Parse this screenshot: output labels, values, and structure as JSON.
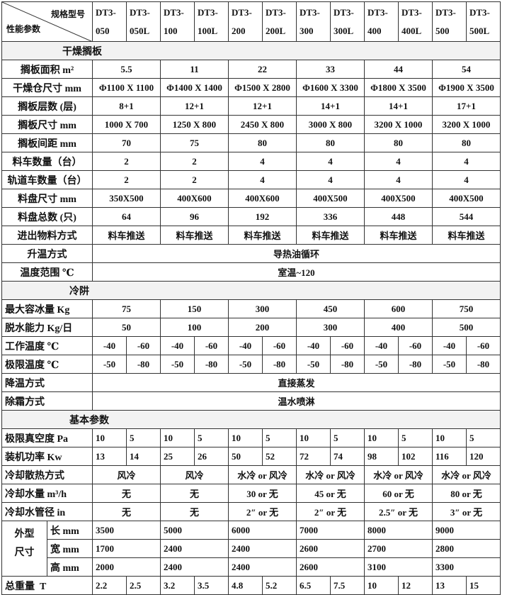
{
  "header": {
    "corner_top": "规格型号",
    "corner_bottom": "性能参数",
    "models": [
      [
        "DT3-",
        "050"
      ],
      [
        "DT3-",
        "050L"
      ],
      [
        "DT3-",
        "100"
      ],
      [
        "DT3-",
        "100L"
      ],
      [
        "DT3-",
        "200"
      ],
      [
        "DT3-",
        "200L"
      ],
      [
        "DT3-",
        "300"
      ],
      [
        "DT3-",
        "300L"
      ],
      [
        "DT3-",
        "400"
      ],
      [
        "DT3-",
        "400L"
      ],
      [
        "DT3-",
        "500"
      ],
      [
        "DT3-",
        "500L"
      ]
    ]
  },
  "sections": [
    {
      "title": "干燥搁板",
      "rows": [
        {
          "label": "搁板面积 m²",
          "cells": [
            [
              "5.5",
              2
            ],
            [
              "11",
              2
            ],
            [
              "22",
              2
            ],
            [
              "33",
              2
            ],
            [
              "44",
              2
            ],
            [
              "54",
              2
            ]
          ]
        },
        {
          "label": "干燥仓尺寸 mm",
          "cells": [
            [
              "Φ1100 X 1100",
              2
            ],
            [
              "Φ1400 X 1400",
              2
            ],
            [
              "Φ1500 X 2800",
              2
            ],
            [
              "Φ1600 X 3300",
              2
            ],
            [
              "Φ1800 X 3500",
              2
            ],
            [
              "Φ1900 X 3500",
              2
            ]
          ]
        },
        {
          "label": "搁板层数 (层)",
          "cells": [
            [
              "8+1",
              2
            ],
            [
              "12+1",
              2
            ],
            [
              "12+1",
              2
            ],
            [
              "14+1",
              2
            ],
            [
              "14+1",
              2
            ],
            [
              "17+1",
              2
            ]
          ]
        },
        {
          "label": "搁板尺寸 mm",
          "cells": [
            [
              "1000 X 700",
              2
            ],
            [
              "1250 X 800",
              2
            ],
            [
              "2450 X 800",
              2
            ],
            [
              "3000 X 800",
              2
            ],
            [
              "3200 X 1000",
              2
            ],
            [
              "3200 X 1000",
              2
            ]
          ]
        },
        {
          "label": "搁板间距 mm",
          "cells": [
            [
              "70",
              2
            ],
            [
              "75",
              2
            ],
            [
              "80",
              2
            ],
            [
              "80",
              2
            ],
            [
              "80",
              2
            ],
            [
              "80",
              2
            ]
          ]
        },
        {
          "label": "料车数量（台）",
          "cells": [
            [
              "2",
              2
            ],
            [
              "2",
              2
            ],
            [
              "4",
              2
            ],
            [
              "4",
              2
            ],
            [
              "4",
              2
            ],
            [
              "4",
              2
            ]
          ]
        },
        {
          "label": "轨道车数量（台）",
          "cells": [
            [
              "2",
              2
            ],
            [
              "2",
              2
            ],
            [
              "4",
              2
            ],
            [
              "4",
              2
            ],
            [
              "4",
              2
            ],
            [
              "4",
              2
            ]
          ]
        },
        {
          "label": "料盘尺寸 mm",
          "cells": [
            [
              "350X500",
              2
            ],
            [
              "400X600",
              2
            ],
            [
              "400X600",
              2
            ],
            [
              "400X500",
              2
            ],
            [
              "400X500",
              2
            ],
            [
              "400X500",
              2
            ]
          ]
        },
        {
          "label": "料盘总数 (只)",
          "cells": [
            [
              "64",
              2
            ],
            [
              "96",
              2
            ],
            [
              "192",
              2
            ],
            [
              "336",
              2
            ],
            [
              "448",
              2
            ],
            [
              "544",
              2
            ]
          ]
        },
        {
          "label": "进出物料方式",
          "cells": [
            [
              "料车推送",
              2
            ],
            [
              "料车推送",
              2
            ],
            [
              "料车推送",
              2
            ],
            [
              "料车推送",
              2
            ],
            [
              "料车推送",
              2
            ],
            [
              "料车推送",
              2
            ]
          ]
        },
        {
          "label": "升温方式",
          "cells": [
            [
              "导热油循环",
              12
            ]
          ]
        },
        {
          "label": "温度范围 ℃",
          "cells": [
            [
              "室温~120",
              12
            ]
          ]
        }
      ]
    },
    {
      "title": "冷阱",
      "rows": [
        {
          "label": "最大容冰量 Kg",
          "cells": [
            [
              "75",
              2
            ],
            [
              "150",
              2
            ],
            [
              "300",
              2
            ],
            [
              "450",
              2
            ],
            [
              "600",
              2
            ],
            [
              "750",
              2
            ]
          ]
        },
        {
          "label": "脱水能力 Kg/日",
          "cells": [
            [
              "50",
              2
            ],
            [
              "100",
              2
            ],
            [
              "200",
              2
            ],
            [
              "300",
              2
            ],
            [
              "400",
              2
            ],
            [
              "500",
              2
            ]
          ]
        },
        {
          "label": "工作温度 ℃",
          "cells": [
            [
              "-40",
              1
            ],
            [
              "-60",
              1
            ],
            [
              "-40",
              1
            ],
            [
              "-60",
              1
            ],
            [
              "-40",
              1
            ],
            [
              "-60",
              1
            ],
            [
              "-40",
              1
            ],
            [
              "-60",
              1
            ],
            [
              "-40",
              1
            ],
            [
              "-60",
              1
            ],
            [
              "-40",
              1
            ],
            [
              "-60",
              1
            ]
          ]
        },
        {
          "label": "极限温度 ℃",
          "cells": [
            [
              "-50",
              1
            ],
            [
              "-80",
              1
            ],
            [
              "-50",
              1
            ],
            [
              "-80",
              1
            ],
            [
              "-50",
              1
            ],
            [
              "-80",
              1
            ],
            [
              "-50",
              1
            ],
            [
              "-80",
              1
            ],
            [
              "-50",
              1
            ],
            [
              "-80",
              1
            ],
            [
              "-50",
              1
            ],
            [
              "-80",
              1
            ]
          ]
        },
        {
          "label": "降温方式",
          "cells": [
            [
              "直接蒸发",
              12
            ]
          ]
        },
        {
          "label": "除霜方式",
          "cells": [
            [
              "温水喷淋",
              12
            ]
          ]
        }
      ]
    },
    {
      "title": "基本参数",
      "rows": [
        {
          "label": "极限真空度 Pa",
          "cells": [
            [
              "10",
              1
            ],
            [
              "5",
              1
            ],
            [
              "10",
              1
            ],
            [
              "5",
              1
            ],
            [
              "10",
              1
            ],
            [
              "5",
              1
            ],
            [
              "10",
              1
            ],
            [
              "5",
              1
            ],
            [
              "10",
              1
            ],
            [
              "5",
              1
            ],
            [
              "10",
              1
            ],
            [
              "5",
              1
            ]
          ]
        },
        {
          "label": "装机功率 Kw",
          "cells": [
            [
              "13",
              1
            ],
            [
              "14",
              1
            ],
            [
              "25",
              1
            ],
            [
              "26",
              1
            ],
            [
              "50",
              1
            ],
            [
              "52",
              1
            ],
            [
              "72",
              1
            ],
            [
              "74",
              1
            ],
            [
              "98",
              1
            ],
            [
              "102",
              1
            ],
            [
              "116",
              1
            ],
            [
              "120",
              1
            ]
          ]
        },
        {
          "label": "冷却散热方式",
          "cells": [
            [
              "风冷",
              2
            ],
            [
              "风冷",
              2
            ],
            [
              "水冷 or 风冷",
              2
            ],
            [
              "水冷 or 风冷",
              2
            ],
            [
              "水冷 or 风冷",
              2
            ],
            [
              "水冷 or 风冷",
              2
            ]
          ]
        },
        {
          "label": "冷却水量 m³/h",
          "cells": [
            [
              "无",
              2
            ],
            [
              "无",
              2
            ],
            [
              "30 or 无",
              2
            ],
            [
              "45 or 无",
              2
            ],
            [
              "60 or 无",
              2
            ],
            [
              "80 or 无",
              2
            ]
          ]
        },
        {
          "label": "冷却水管径 in",
          "cells": [
            [
              "无",
              2
            ],
            [
              "无",
              2
            ],
            [
              "2″ or 无",
              2
            ],
            [
              "2″ or 无",
              2
            ],
            [
              "2.5″ or 无",
              2
            ],
            [
              "3″ or 无",
              2
            ]
          ]
        }
      ]
    }
  ],
  "dimensions": {
    "group_label": [
      "外型",
      "尺寸"
    ],
    "rows": [
      {
        "label": "长 mm",
        "cells": [
          "3500",
          "5000",
          "6000",
          "7000",
          "8000",
          "9000"
        ]
      },
      {
        "label": "宽 mm",
        "cells": [
          "1700",
          "2400",
          "2400",
          "2600",
          "2700",
          "2800"
        ]
      },
      {
        "label": "高 mm",
        "cells": [
          "2000",
          "2400",
          "2400",
          "2600",
          "3100",
          "3300"
        ]
      }
    ]
  },
  "weight": {
    "label": "总重量  T",
    "cells": [
      "2.2",
      "2.5",
      "3.2",
      "3.5",
      "4.8",
      "5.2",
      "6.5",
      "7.5",
      "10",
      "12",
      "13",
      "15"
    ]
  }
}
